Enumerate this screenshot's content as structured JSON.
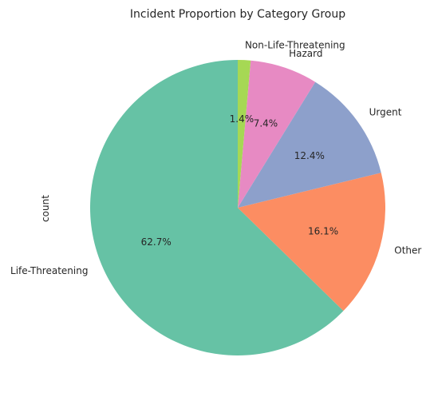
{
  "chart_data": {
    "type": "pie",
    "title": "Incident Proportion by Category Group",
    "ylabel": "count",
    "start_angle_deg": 90,
    "direction": "counterclockwise",
    "slices": [
      {
        "label": "Life-Threatening",
        "percent": 62.7,
        "percent_label": "62.7%",
        "color": "#66c2a5"
      },
      {
        "label": "Other",
        "percent": 16.1,
        "percent_label": "16.1%",
        "color": "#fc8d62"
      },
      {
        "label": "Urgent",
        "percent": 12.4,
        "percent_label": "12.4%",
        "color": "#8da0cb"
      },
      {
        "label": "Hazard",
        "percent": 7.4,
        "percent_label": "7.4%",
        "color": "#e78ac3"
      },
      {
        "label": "Non-Life-Threatening",
        "percent": 1.4,
        "percent_label": "1.4%",
        "color": "#a6d854"
      }
    ]
  }
}
